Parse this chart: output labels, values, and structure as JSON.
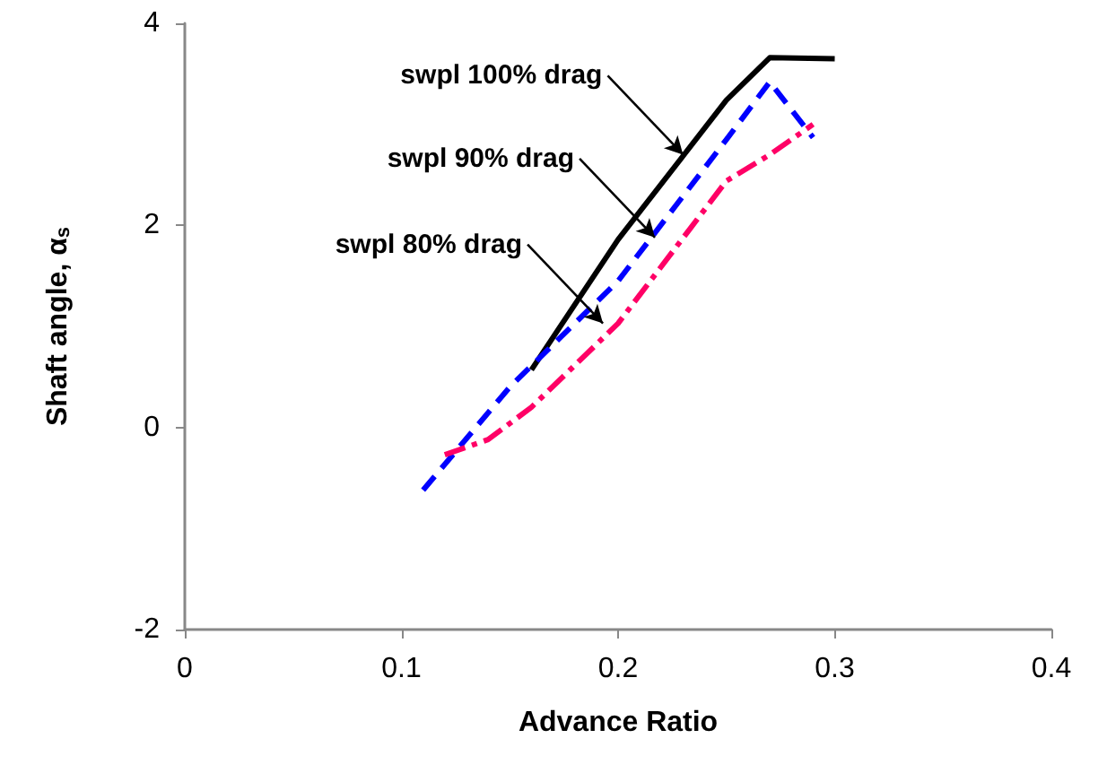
{
  "chart_data": {
    "type": "line",
    "xlabel": "Advance Ratio",
    "ylabel": "Shaft angle, α$_{s}$",
    "xlim": [
      0,
      0.4
    ],
    "xticks": [
      0,
      0.1,
      0.2,
      0.3,
      0.4
    ],
    "ylim": [
      -2,
      4
    ],
    "yticks": [
      -2,
      0,
      2,
      4
    ],
    "grid": false,
    "marker": "none",
    "series": [
      {
        "color": "#000000",
        "line_style": "solid",
        "x": [
          0.16,
          0.2,
          0.25,
          0.27,
          0.3
        ],
        "values": [
          0.57,
          1.86,
          3.24,
          3.66,
          3.65
        ]
      },
      {
        "color": "#0000ff",
        "line_style": "dashed",
        "x": [
          0.11,
          0.15,
          0.2,
          0.25,
          0.27,
          0.29
        ],
        "values": [
          -0.62,
          0.4,
          1.45,
          2.85,
          3.42,
          2.87
        ]
      },
      {
        "color": "#ff0066",
        "line_style": "dashdot",
        "x": [
          0.12,
          0.14,
          0.16,
          0.2,
          0.25,
          0.27,
          0.29
        ],
        "values": [
          -0.27,
          -0.12,
          0.2,
          1.03,
          2.44,
          2.7,
          3.0
        ]
      }
    ],
    "annotations": [
      {
        "text": "swpl 100% drag",
        "x": 0.23,
        "y": 2.7
      },
      {
        "text": "swpl 90% drag",
        "x": 0.217,
        "y": 1.88
      },
      {
        "text": "swpl 80% drag",
        "x": 0.193,
        "y": 1.03
      }
    ]
  }
}
